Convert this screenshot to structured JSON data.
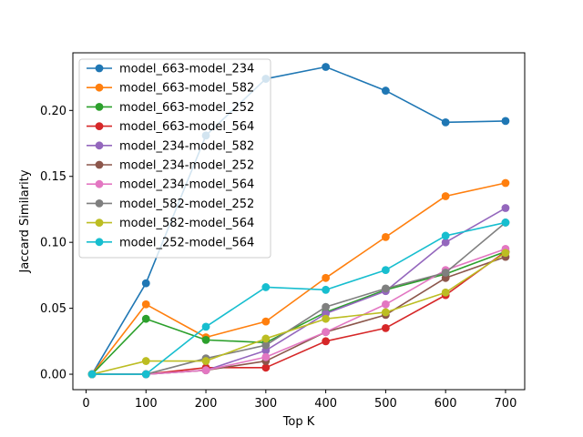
{
  "chart_data": {
    "type": "line",
    "title": "",
    "xlabel": "Top K",
    "ylabel": "Jaccard Similarity",
    "xlim": [
      -22,
      732
    ],
    "ylim": [
      -0.0117,
      0.2437
    ],
    "x_ticks": [
      0,
      100,
      200,
      300,
      400,
      500,
      600,
      700
    ],
    "y_ticks": [
      0.0,
      0.05,
      0.1,
      0.15,
      0.2
    ],
    "y_tick_labels": [
      "0.00",
      "0.05",
      "0.10",
      "0.15",
      "0.20"
    ],
    "grid": false,
    "legend_position": "upper-left",
    "x": [
      10,
      100,
      200,
      300,
      400,
      500,
      600,
      700
    ],
    "series": [
      {
        "name": "model_663-model_234",
        "color": "#1f77b4",
        "values": [
          0.0,
          0.069,
          0.181,
          0.224,
          0.233,
          0.215,
          0.191,
          0.192
        ]
      },
      {
        "name": "model_663-model_582",
        "color": "#ff7f0e",
        "values": [
          0.0,
          0.053,
          0.028,
          0.04,
          0.073,
          0.104,
          0.135,
          0.145
        ]
      },
      {
        "name": "model_663-model_252",
        "color": "#2ca02c",
        "values": [
          0.0,
          0.042,
          0.026,
          0.024,
          0.047,
          0.064,
          0.076,
          0.093
        ]
      },
      {
        "name": "model_663-model_564",
        "color": "#d62728",
        "values": [
          0.0,
          0.0,
          0.005,
          0.005,
          0.025,
          0.035,
          0.06,
          0.093
        ]
      },
      {
        "name": "model_234-model_582",
        "color": "#9467bd",
        "values": [
          0.0,
          0.0,
          0.003,
          0.018,
          0.046,
          0.063,
          0.1,
          0.126
        ]
      },
      {
        "name": "model_234-model_252",
        "color": "#8c564b",
        "values": [
          0.0,
          0.0,
          0.003,
          0.01,
          0.032,
          0.045,
          0.073,
          0.089
        ]
      },
      {
        "name": "model_234-model_564",
        "color": "#e377c2",
        "values": [
          0.0,
          0.0,
          0.003,
          0.013,
          0.032,
          0.053,
          0.079,
          0.095
        ]
      },
      {
        "name": "model_582-model_252",
        "color": "#7f7f7f",
        "values": [
          0.0,
          0.0,
          0.012,
          0.022,
          0.051,
          0.065,
          0.077,
          0.115
        ]
      },
      {
        "name": "model_582-model_564",
        "color": "#bcbd22",
        "values": [
          0.0,
          0.01,
          0.01,
          0.027,
          0.042,
          0.047,
          0.062,
          0.092
        ]
      },
      {
        "name": "model_252-model_564",
        "color": "#17becf",
        "values": [
          0.0,
          0.0,
          0.036,
          0.066,
          0.064,
          0.079,
          0.105,
          0.115
        ]
      }
    ]
  }
}
